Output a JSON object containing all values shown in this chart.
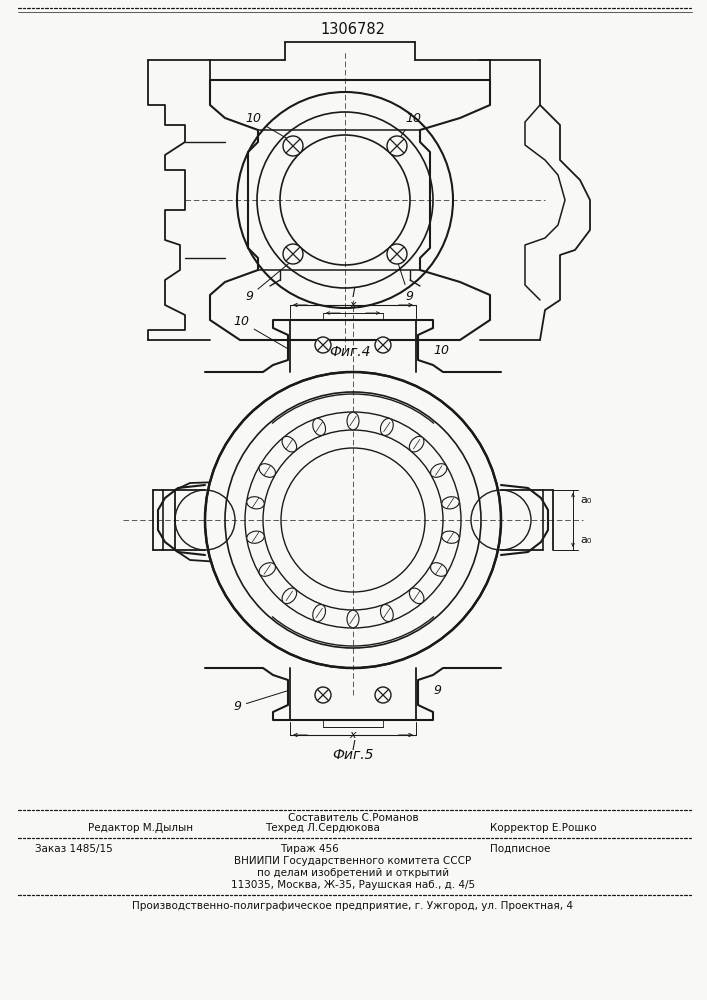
{
  "title": "1306782",
  "fig4_label": "Фиг.4",
  "fig5_label": "Фиг.5",
  "editor_line": "Редактор М.Дылын",
  "composer_line1": "Составитель С.Романов",
  "composer_line2": "Техред Л.Сердюкова",
  "corrector_line": "Корректор Е.Рошко",
  "order_line": "Заказ 1485/15",
  "tirazh_line": "Тираж 456",
  "podpisnoe_line": "Подписное",
  "vnipi_line1": "ВНИИПИ Государственного комитета СССР",
  "vnipi_line2": "по делам изобретений и открытий",
  "vnipi_line3": "113035, Москва, Ж-35, Раушская наб., д. 4/5",
  "factory_line": "Производственно-полиграфическое предприятие, г. Ужгород, ул. Проектная, 4",
  "bg_color": "#f8f8f4",
  "line_color": "#1a1a1a",
  "font_color": "#111111"
}
